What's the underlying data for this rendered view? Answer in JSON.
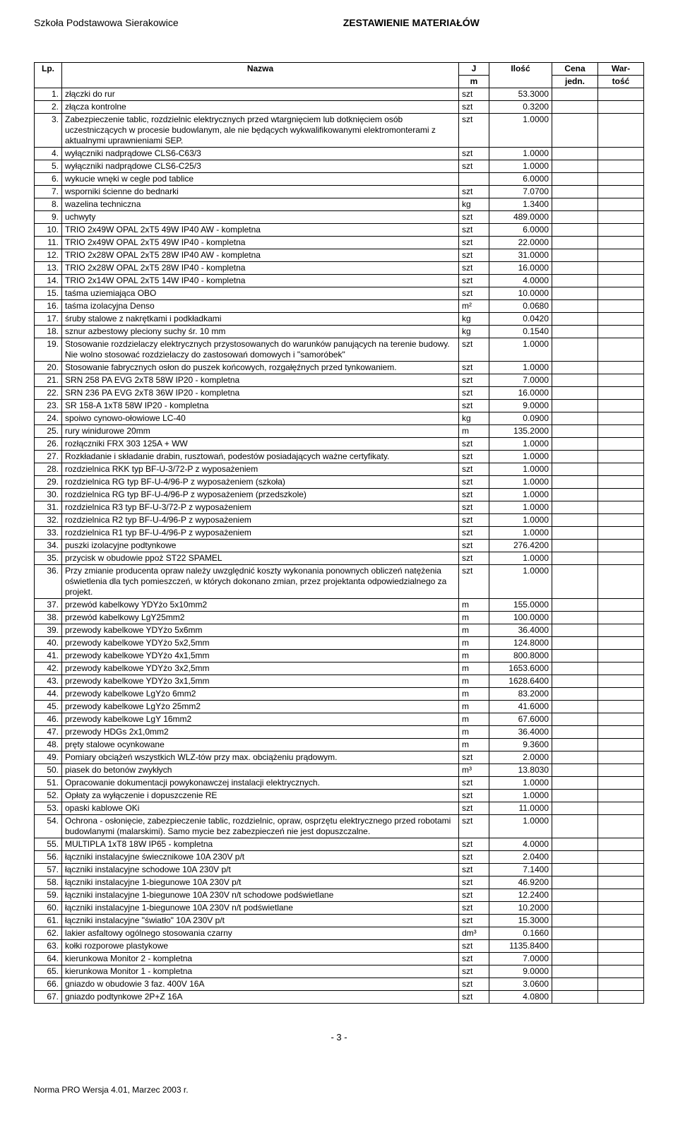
{
  "header": {
    "left": "Szkoła Podstawowa Sierakowice",
    "center": "ZESTAWIENIE MATERIAŁÓW"
  },
  "table": {
    "head1": {
      "lp": "Lp.",
      "nazwa": "Nazwa",
      "jm": "J",
      "ilosc": "Ilość",
      "cena": "Cena",
      "wart": "War-"
    },
    "head2": {
      "jm": "m",
      "cena": "jedn.",
      "wart": "tość"
    },
    "rows": [
      {
        "lp": "1.",
        "n": "złączki do rur",
        "jm": "szt",
        "il": "53.3000"
      },
      {
        "lp": "2.",
        "n": "złącza kontrolne",
        "jm": "szt",
        "il": "0.3200"
      },
      {
        "lp": "3.",
        "n": "Zabezpieczenie tablic, rozdzielnic elektrycznych przed wtargnięciem lub dotknięciem osób uczestniczących w procesie budowlanym, ale nie będących wykwalifikowanymi elektromonterami z aktualnymi uprawnieniami SEP.",
        "jm": "szt",
        "il": "1.0000"
      },
      {
        "lp": "4.",
        "n": "wyłączniki nadprądowe CLS6-C63/3",
        "jm": "szt",
        "il": "1.0000"
      },
      {
        "lp": "5.",
        "n": "wyłączniki nadprądowe CLS6-C25/3",
        "jm": "szt",
        "il": "1.0000"
      },
      {
        "lp": "6.",
        "n": "wykucie wnęki w cegle pod tablice",
        "jm": "",
        "il": "6.0000"
      },
      {
        "lp": "7.",
        "n": "wsporniki ścienne do bednarki",
        "jm": "szt",
        "il": "7.0700"
      },
      {
        "lp": "8.",
        "n": "wazelina techniczna",
        "jm": "kg",
        "il": "1.3400"
      },
      {
        "lp": "9.",
        "n": "uchwyty",
        "jm": "szt",
        "il": "489.0000"
      },
      {
        "lp": "10.",
        "n": "TRIO 2x49W OPAL 2xT5 49W IP40 AW - kompletna",
        "jm": "szt",
        "il": "6.0000"
      },
      {
        "lp": "11.",
        "n": "TRIO 2x49W OPAL 2xT5 49W IP40 - kompletna",
        "jm": "szt",
        "il": "22.0000"
      },
      {
        "lp": "12.",
        "n": "TRIO 2x28W OPAL 2xT5 28W IP40 AW - kompletna",
        "jm": "szt",
        "il": "31.0000"
      },
      {
        "lp": "13.",
        "n": "TRIO 2x28W OPAL 2xT5 28W IP40 - kompletna",
        "jm": "szt",
        "il": "16.0000"
      },
      {
        "lp": "14.",
        "n": "TRIO 2x14W OPAL 2xT5 14W IP40 - kompletna",
        "jm": "szt",
        "il": "4.0000"
      },
      {
        "lp": "15.",
        "n": "taśma uziemiająca OBO",
        "jm": "szt",
        "il": "10.0000"
      },
      {
        "lp": "16.",
        "n": "taśma izolacyjna Denso",
        "jm": "m²",
        "il": "0.0680"
      },
      {
        "lp": "17.",
        "n": "śruby stalowe z nakrętkami i podkładkami",
        "jm": "kg",
        "il": "0.0420"
      },
      {
        "lp": "18.",
        "n": "sznur azbestowy pleciony suchy śr. 10 mm",
        "jm": "kg",
        "il": "0.1540"
      },
      {
        "lp": "19.",
        "n": "Stosowanie rozdzielaczy elektrycznych przystosowanych do warunków panujących na terenie budowy. Nie wolno stosować rozdzielaczy do zastosowań domowych i \"samoróbek\"",
        "jm": "szt",
        "il": "1.0000"
      },
      {
        "lp": "20.",
        "n": "Stosowanie fabrycznych osłon do puszek końcowych, rozgałęźnych przed tynkowaniem.",
        "jm": "szt",
        "il": "1.0000"
      },
      {
        "lp": "21.",
        "n": "SRN 258 PA EVG 2xT8 58W IP20 - kompletna",
        "jm": "szt",
        "il": "7.0000"
      },
      {
        "lp": "22.",
        "n": "SRN 236 PA EVG 2xT8 36W IP20 - kompletna",
        "jm": "szt",
        "il": "16.0000"
      },
      {
        "lp": "23.",
        "n": "SR 158-A 1xT8 58W IP20 - kompletna",
        "jm": "szt",
        "il": "9.0000"
      },
      {
        "lp": "24.",
        "n": "spoiwo cynowo-ołowiowe LC-40",
        "jm": "kg",
        "il": "0.0900"
      },
      {
        "lp": "25.",
        "n": "rury winidurowe 20mm",
        "jm": "m",
        "il": "135.2000"
      },
      {
        "lp": "26.",
        "n": "rozłączniki FRX 303 125A + WW",
        "jm": "szt",
        "il": "1.0000"
      },
      {
        "lp": "27.",
        "n": "Rozkładanie i składanie drabin, rusztowań, podestów posiadających ważne certyfikaty.",
        "jm": "szt",
        "il": "1.0000"
      },
      {
        "lp": "28.",
        "n": "rozdzielnica RKK typ BF-U-3/72-P z wyposażeniem",
        "jm": "szt",
        "il": "1.0000"
      },
      {
        "lp": "29.",
        "n": "rozdzielnica RG typ BF-U-4/96-P z wyposażeniem (szkoła)",
        "jm": "szt",
        "il": "1.0000"
      },
      {
        "lp": "30.",
        "n": "rozdzielnica RG typ BF-U-4/96-P z wyposażeniem (przedszkole)",
        "jm": "szt",
        "il": "1.0000"
      },
      {
        "lp": "31.",
        "n": "rozdzielnica R3 typ BF-U-3/72-P z wyposażeniem",
        "jm": "szt",
        "il": "1.0000"
      },
      {
        "lp": "32.",
        "n": "rozdzielnica R2 typ BF-U-4/96-P z wyposażeniem",
        "jm": "szt",
        "il": "1.0000"
      },
      {
        "lp": "33.",
        "n": "rozdzielnica R1 typ BF-U-4/96-P z wyposażeniem",
        "jm": "szt",
        "il": "1.0000"
      },
      {
        "lp": "34.",
        "n": "puszki izolacyjne podtynkowe",
        "jm": "szt",
        "il": "276.4200"
      },
      {
        "lp": "35.",
        "n": "przycisk w obudowie ppoż ST22 SPAMEL",
        "jm": "szt",
        "il": "1.0000"
      },
      {
        "lp": "36.",
        "n": "Przy zmianie producenta opraw należy uwzględnić koszty wykonania ponownych obliczeń natężenia oświetlenia dla tych pomieszczeń, w których dokonano zmian, przez projektanta odpowiedzialnego za projekt.",
        "jm": "szt",
        "il": "1.0000"
      },
      {
        "lp": "37.",
        "n": "przewód kabelkowy YDYżo 5x10mm2",
        "jm": "m",
        "il": "155.0000"
      },
      {
        "lp": "38.",
        "n": "przewód kabelkowy LgY25mm2",
        "jm": "m",
        "il": "100.0000"
      },
      {
        "lp": "39.",
        "n": "przewody kabelkowe YDYżo 5x6mm",
        "jm": "m",
        "il": "36.4000"
      },
      {
        "lp": "40.",
        "n": "przewody kabelkowe YDYżo 5x2,5mm",
        "jm": "m",
        "il": "124.8000"
      },
      {
        "lp": "41.",
        "n": "przewody kabelkowe YDYżo 4x1,5mm",
        "jm": "m",
        "il": "800.8000"
      },
      {
        "lp": "42.",
        "n": "przewody kabelkowe YDYżo 3x2,5mm",
        "jm": "m",
        "il": "1653.6000"
      },
      {
        "lp": "43.",
        "n": "przewody kabelkowe YDYżo 3x1,5mm",
        "jm": "m",
        "il": "1628.6400"
      },
      {
        "lp": "44.",
        "n": "przewody kabelkowe LgYżo 6mm2",
        "jm": "m",
        "il": "83.2000"
      },
      {
        "lp": "45.",
        "n": "przewody kabelkowe LgYżo 25mm2",
        "jm": "m",
        "il": "41.6000"
      },
      {
        "lp": "46.",
        "n": "przewody kabelkowe LgY 16mm2",
        "jm": "m",
        "il": "67.6000"
      },
      {
        "lp": "47.",
        "n": "przewody HDGs 2x1,0mm2",
        "jm": "m",
        "il": "36.4000"
      },
      {
        "lp": "48.",
        "n": "pręty stalowe ocynkowane",
        "jm": "m",
        "il": "9.3600"
      },
      {
        "lp": "49.",
        "n": "Pomiary obciążeń wszystkich WLZ-tów przy max. obciążeniu prądowym.",
        "jm": "szt",
        "il": "2.0000"
      },
      {
        "lp": "50.",
        "n": "piasek do betonów zwykłych",
        "jm": "m³",
        "il": "13.8030"
      },
      {
        "lp": "51.",
        "n": "Opracowanie dokumentacji powykonawczej instalacji elektrycznych.",
        "jm": "szt",
        "il": "1.0000"
      },
      {
        "lp": "52.",
        "n": "Opłaty za wyłączenie i dopuszczenie RE",
        "jm": "szt",
        "il": "1.0000"
      },
      {
        "lp": "53.",
        "n": "opaski kablowe OKi",
        "jm": "szt",
        "il": "11.0000"
      },
      {
        "lp": "54.",
        "n": "Ochrona - osłonięcie, zabezpieczenie tablic, rozdzielnic, opraw, osprzętu   elektrycznego przed robotami budowlanymi (malarskimi). Samo mycie bez zabezpieczeń nie jest dopuszczalne.",
        "jm": "szt",
        "il": "1.0000"
      },
      {
        "lp": "55.",
        "n": "MULTIPLA 1xT8 18W IP65 - kompletna",
        "jm": "szt",
        "il": "4.0000"
      },
      {
        "lp": "56.",
        "n": "łączniki instalacyjne świecznikowe 10A 230V p/t",
        "jm": "szt",
        "il": "2.0400"
      },
      {
        "lp": "57.",
        "n": "łączniki instalacyjne schodowe 10A 230V p/t",
        "jm": "szt",
        "il": "7.1400"
      },
      {
        "lp": "58.",
        "n": "łączniki instalacyjne 1-biegunowe 10A 230V p/t",
        "jm": "szt",
        "il": "46.9200"
      },
      {
        "lp": "59.",
        "n": "łączniki instalacyjne 1-biegunowe 10A 230V n/t schodowe podświetlane",
        "jm": "szt",
        "il": "12.2400"
      },
      {
        "lp": "60.",
        "n": "łączniki instalacyjne 1-biegunowe 10A 230V n/t podświetlane",
        "jm": "szt",
        "il": "10.2000"
      },
      {
        "lp": "61.",
        "n": "łączniki instalacyjne \"światło\" 10A 230V p/t",
        "jm": "szt",
        "il": "15.3000"
      },
      {
        "lp": "62.",
        "n": "lakier asfaltowy ogólnego stosowania czarny",
        "jm": "dm³",
        "il": "0.1660"
      },
      {
        "lp": "63.",
        "n": "kołki rozporowe plastykowe",
        "jm": "szt",
        "il": "1135.8400"
      },
      {
        "lp": "64.",
        "n": "kierunkowa Monitor 2 - kompletna",
        "jm": "szt",
        "il": "7.0000"
      },
      {
        "lp": "65.",
        "n": "kierunkowa Monitor 1 - kompletna",
        "jm": "szt",
        "il": "9.0000"
      },
      {
        "lp": "66.",
        "n": "gniazdo w obudowie 3 faz. 400V 16A",
        "jm": "szt",
        "il": "3.0600"
      },
      {
        "lp": "67.",
        "n": "gniazdo podtynkowe 2P+Z 16A",
        "jm": "szt",
        "il": "4.0800"
      }
    ]
  },
  "page_number": "- 3 -",
  "footer": "Norma PRO Wersja 4.01, Marzec 2003 r."
}
